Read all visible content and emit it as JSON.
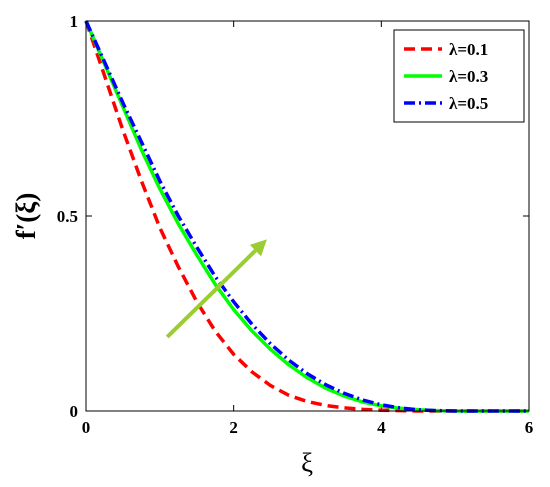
{
  "chart_data": {
    "type": "line",
    "xlabel": "ξ",
    "ylabel": "f′(ξ)",
    "xlim": [
      0,
      6
    ],
    "ylim": [
      0,
      1
    ],
    "xticks": [
      "0",
      "2",
      "4",
      "6"
    ],
    "yticks": [
      "0",
      "0.5",
      "1"
    ],
    "grid": false,
    "legend_position": "top-right",
    "annotation": {
      "type": "arrow",
      "color": "#9ACD32",
      "from": [
        1.1,
        0.19
      ],
      "to": [
        2.45,
        0.44
      ]
    },
    "series": [
      {
        "name": "λ=0.1",
        "color": "#FF0000",
        "style": "dashed",
        "x": [
          0,
          0.25,
          0.5,
          0.75,
          1,
          1.25,
          1.5,
          1.75,
          2,
          2.25,
          2.5,
          2.75,
          3,
          3.25,
          3.5,
          3.75,
          4,
          4.25,
          4.5,
          5,
          6
        ],
        "y": [
          1,
          0.86,
          0.72,
          0.59,
          0.47,
          0.37,
          0.28,
          0.205,
          0.145,
          0.1,
          0.065,
          0.04,
          0.024,
          0.014,
          0.008,
          0.004,
          0.002,
          0.001,
          0,
          0,
          0
        ]
      },
      {
        "name": "λ=0.3",
        "color": "#00FF00",
        "style": "solid",
        "x": [
          0,
          0.25,
          0.5,
          0.75,
          1,
          1.25,
          1.5,
          1.75,
          2,
          2.25,
          2.5,
          2.75,
          3,
          3.25,
          3.5,
          3.75,
          4,
          4.25,
          4.5,
          4.75,
          5,
          6
        ],
        "y": [
          1,
          0.89,
          0.78,
          0.67,
          0.57,
          0.48,
          0.4,
          0.325,
          0.26,
          0.205,
          0.158,
          0.118,
          0.085,
          0.058,
          0.038,
          0.023,
          0.013,
          0.007,
          0.003,
          0.001,
          0,
          0
        ]
      },
      {
        "name": "λ=0.5",
        "color": "#0000FF",
        "style": "dashdot",
        "x": [
          0,
          0.25,
          0.5,
          0.75,
          1,
          1.25,
          1.5,
          1.75,
          2,
          2.25,
          2.5,
          2.75,
          3,
          3.25,
          3.5,
          3.75,
          4,
          4.25,
          4.5,
          4.75,
          5,
          6
        ],
        "y": [
          1,
          0.895,
          0.79,
          0.69,
          0.59,
          0.5,
          0.42,
          0.345,
          0.28,
          0.222,
          0.172,
          0.13,
          0.095,
          0.067,
          0.045,
          0.028,
          0.016,
          0.008,
          0.003,
          0.001,
          0,
          0
        ]
      }
    ]
  }
}
